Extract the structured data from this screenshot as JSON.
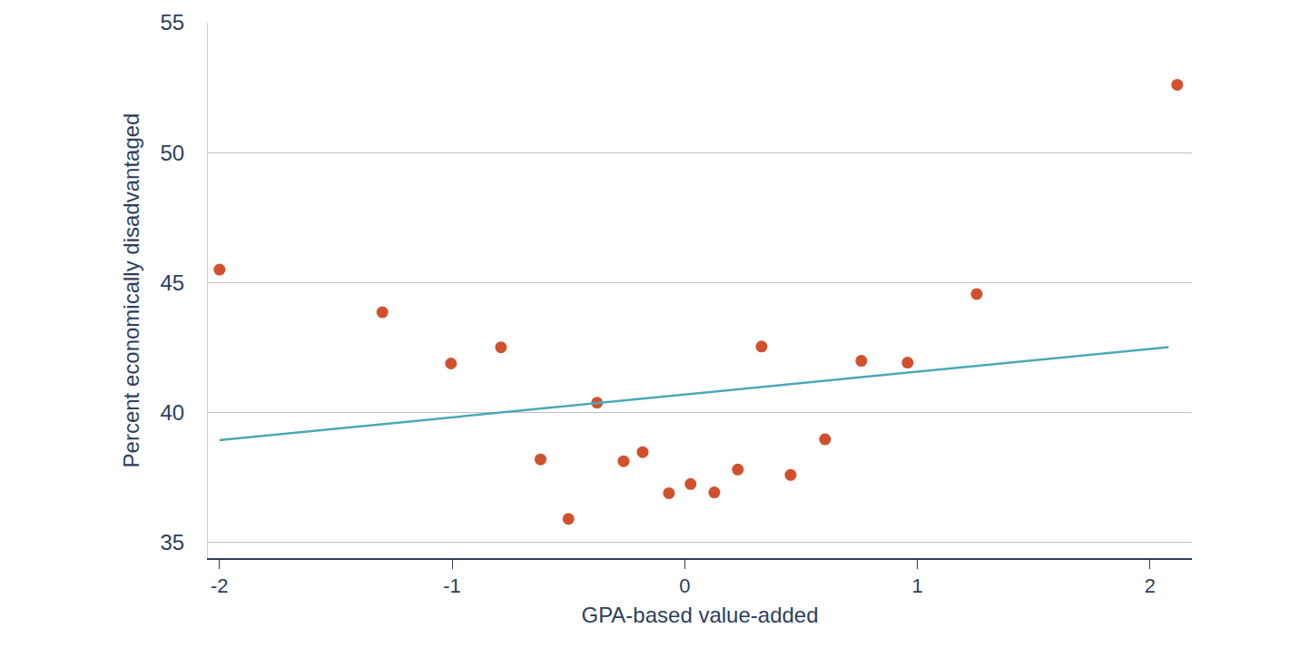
{
  "chart_data": {
    "type": "scatter",
    "xlabel": "GPA-based value-added",
    "ylabel": "Percent economically disadvantaged",
    "xlim": [
      -2.05,
      2.18
    ],
    "ylim": [
      34.4,
      55
    ],
    "xticks": [
      -2,
      -1,
      0,
      1,
      2
    ],
    "yticks": [
      35,
      40,
      45,
      50,
      55
    ],
    "grid": true,
    "series": [
      {
        "type": "scatter",
        "color": "#d2502e",
        "marker": "circle",
        "x": [
          -2.0,
          -1.3,
          -1.005,
          -0.79,
          -0.62,
          -0.5,
          -0.377,
          -0.263,
          -0.181,
          -0.068,
          0.025,
          0.127,
          0.228,
          0.33,
          0.455,
          0.603,
          0.759,
          0.958,
          1.255,
          2.117
        ],
        "values": [
          45.5,
          43.86,
          41.89,
          42.51,
          38.2,
          35.91,
          40.38,
          38.13,
          38.48,
          36.9,
          37.25,
          36.93,
          37.81,
          42.54,
          37.6,
          38.97,
          41.99,
          41.92,
          44.56,
          52.61
        ]
      },
      {
        "type": "line",
        "color": "#4aa8b8",
        "line_style": "solid",
        "x": [
          -2.0,
          2.08
        ],
        "values": [
          38.94,
          42.52
        ]
      }
    ]
  }
}
